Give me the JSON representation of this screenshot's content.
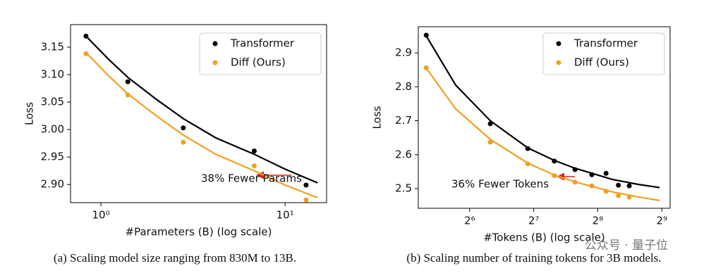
{
  "chart_data": [
    {
      "type": "scatter",
      "xscale": "log",
      "xlabel": "#Parameters (B) (log scale)",
      "ylabel": "Loss",
      "caption": "(a) Scaling model size ranging from 830M to 13B.",
      "xlim": [
        0.684,
        16.8
      ],
      "ylim": [
        2.867,
        3.191
      ],
      "xticks": [
        {
          "value": 1,
          "label": "10⁰"
        },
        {
          "value": 10,
          "label": "10¹"
        }
      ],
      "yticks": [
        {
          "value": 2.9,
          "label": "2.90"
        },
        2.95,
        {
          "value": 3.0,
          "label": "3.00"
        },
        3.05,
        {
          "value": 3.1,
          "label": "3.10"
        },
        3.15
      ],
      "legend": "upper right",
      "annotation": "38% Fewer Params",
      "series": [
        {
          "name": "Transformer",
          "color": "#000000",
          "x": [
            0.83,
            1.4,
            2.8,
            6.8,
            13
          ],
          "values": [
            3.17,
            3.087,
            3.003,
            2.961,
            2.899
          ],
          "fit": {
            "x": [
              0.83,
              1.1,
              1.4,
              2.0,
              2.8,
              4.2,
              6.8,
              10,
              15
            ],
            "values": [
              3.17,
              3.128,
              3.095,
              3.055,
              3.02,
              2.985,
              2.955,
              2.928,
              2.903
            ]
          }
        },
        {
          "name": "Diff (Ours)",
          "color": "#f0a020",
          "x": [
            0.83,
            1.4,
            2.8,
            6.8,
            13
          ],
          "values": [
            3.138,
            3.063,
            2.977,
            2.934,
            2.872
          ],
          "fit": {
            "x": [
              0.83,
              1.1,
              1.4,
              2.0,
              2.8,
              4.2,
              6.8,
              10,
              15
            ],
            "values": [
              3.14,
              3.098,
              3.065,
              3.025,
              2.99,
              2.955,
              2.925,
              2.899,
              2.876
            ]
          }
        }
      ]
    },
    {
      "type": "scatter",
      "xscale": "log",
      "xlabel": "#Tokens (B) (log scale)",
      "ylabel": "Loss",
      "caption": "(b) Scaling number of training tokens for 3B models.",
      "xlim": [
        36.7,
        560
      ],
      "ylim": [
        2.442,
        2.977
      ],
      "xticks": [
        {
          "value": 64,
          "label": "2⁶"
        },
        {
          "value": 128,
          "label": "2⁷"
        },
        {
          "value": 256,
          "label": "2⁸"
        },
        {
          "value": 512,
          "label": "2⁹"
        }
      ],
      "yticks": [
        2.5,
        2.6,
        2.7,
        2.8,
        2.9
      ],
      "legend": "upper right",
      "annotation": "36% Fewer Tokens",
      "series": [
        {
          "name": "Transformer",
          "color": "#000000",
          "x": [
            40,
            80,
            120,
            160,
            200,
            240,
            280,
            320,
            360
          ],
          "values": [
            2.952,
            2.691,
            2.618,
            2.581,
            2.556,
            2.541,
            2.545,
            2.51,
            2.508
          ],
          "fit": {
            "x": [
              40,
              55,
              80,
              120,
              160,
              200,
              300,
              400,
              500
            ],
            "values": [
              2.95,
              2.805,
              2.7,
              2.62,
              2.583,
              2.56,
              2.527,
              2.512,
              2.503
            ]
          }
        },
        {
          "name": "Diff (Ours)",
          "color": "#f0a020",
          "x": [
            40,
            80,
            120,
            160,
            200,
            240,
            280,
            320,
            360
          ],
          "values": [
            2.856,
            2.637,
            2.573,
            2.538,
            2.519,
            2.508,
            2.492,
            2.479,
            2.475
          ],
          "fit": {
            "x": [
              40,
              55,
              80,
              120,
              160,
              200,
              300,
              400,
              500
            ],
            "values": [
              2.855,
              2.735,
              2.645,
              2.575,
              2.54,
              2.52,
              2.49,
              2.475,
              2.465
            ]
          }
        }
      ]
    },
    {
      "watermark": "公众号 · 量子位"
    }
  ]
}
